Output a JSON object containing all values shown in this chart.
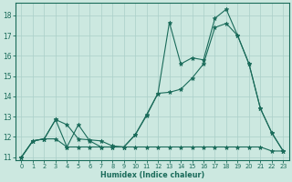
{
  "xlabel": "Humidex (Indice chaleur)",
  "bg_color": "#cce8e0",
  "grid_color": "#aacfc8",
  "line_color": "#1a6b5a",
  "xlim": [
    -0.5,
    23.5
  ],
  "ylim": [
    10.85,
    18.6
  ],
  "yticks": [
    11,
    12,
    13,
    14,
    15,
    16,
    17,
    18
  ],
  "xticks": [
    0,
    1,
    2,
    3,
    4,
    5,
    6,
    7,
    8,
    9,
    10,
    11,
    12,
    13,
    14,
    15,
    16,
    17,
    18,
    19,
    20,
    21,
    22,
    23
  ],
  "series1_x": [
    0,
    1,
    2,
    3,
    4,
    5,
    6,
    7,
    8,
    9,
    10,
    11,
    12,
    13,
    14,
    15,
    16,
    17,
    18,
    19,
    20,
    21,
    22,
    23
  ],
  "series1_y": [
    11.0,
    11.8,
    11.9,
    12.85,
    12.6,
    11.9,
    11.85,
    11.8,
    11.55,
    11.5,
    12.1,
    13.1,
    14.15,
    17.65,
    15.6,
    15.9,
    15.8,
    17.85,
    18.3,
    17.0,
    15.6,
    13.4,
    12.2,
    11.3
  ],
  "series2_x": [
    0,
    1,
    2,
    3,
    4,
    5,
    6,
    7,
    8,
    9,
    10,
    11,
    12,
    13,
    14,
    15,
    16,
    17,
    18,
    19,
    20,
    21,
    22,
    23
  ],
  "series2_y": [
    11.0,
    11.8,
    11.9,
    12.85,
    11.5,
    12.6,
    11.8,
    11.5,
    11.5,
    11.5,
    12.1,
    13.05,
    14.15,
    14.2,
    14.35,
    14.9,
    15.6,
    17.4,
    17.6,
    17.0,
    15.6,
    13.4,
    12.2,
    11.3
  ],
  "series3_x": [
    0,
    1,
    2,
    3,
    4,
    5,
    6,
    7,
    8,
    9,
    10,
    11,
    12,
    13,
    14,
    15,
    16,
    17,
    18,
    19,
    20,
    21,
    22,
    23
  ],
  "series3_y": [
    11.0,
    11.8,
    11.9,
    11.9,
    11.5,
    11.5,
    11.5,
    11.5,
    11.5,
    11.5,
    11.5,
    11.5,
    11.5,
    11.5,
    11.5,
    11.5,
    11.5,
    11.5,
    11.5,
    11.5,
    11.5,
    11.5,
    11.3,
    11.3
  ]
}
